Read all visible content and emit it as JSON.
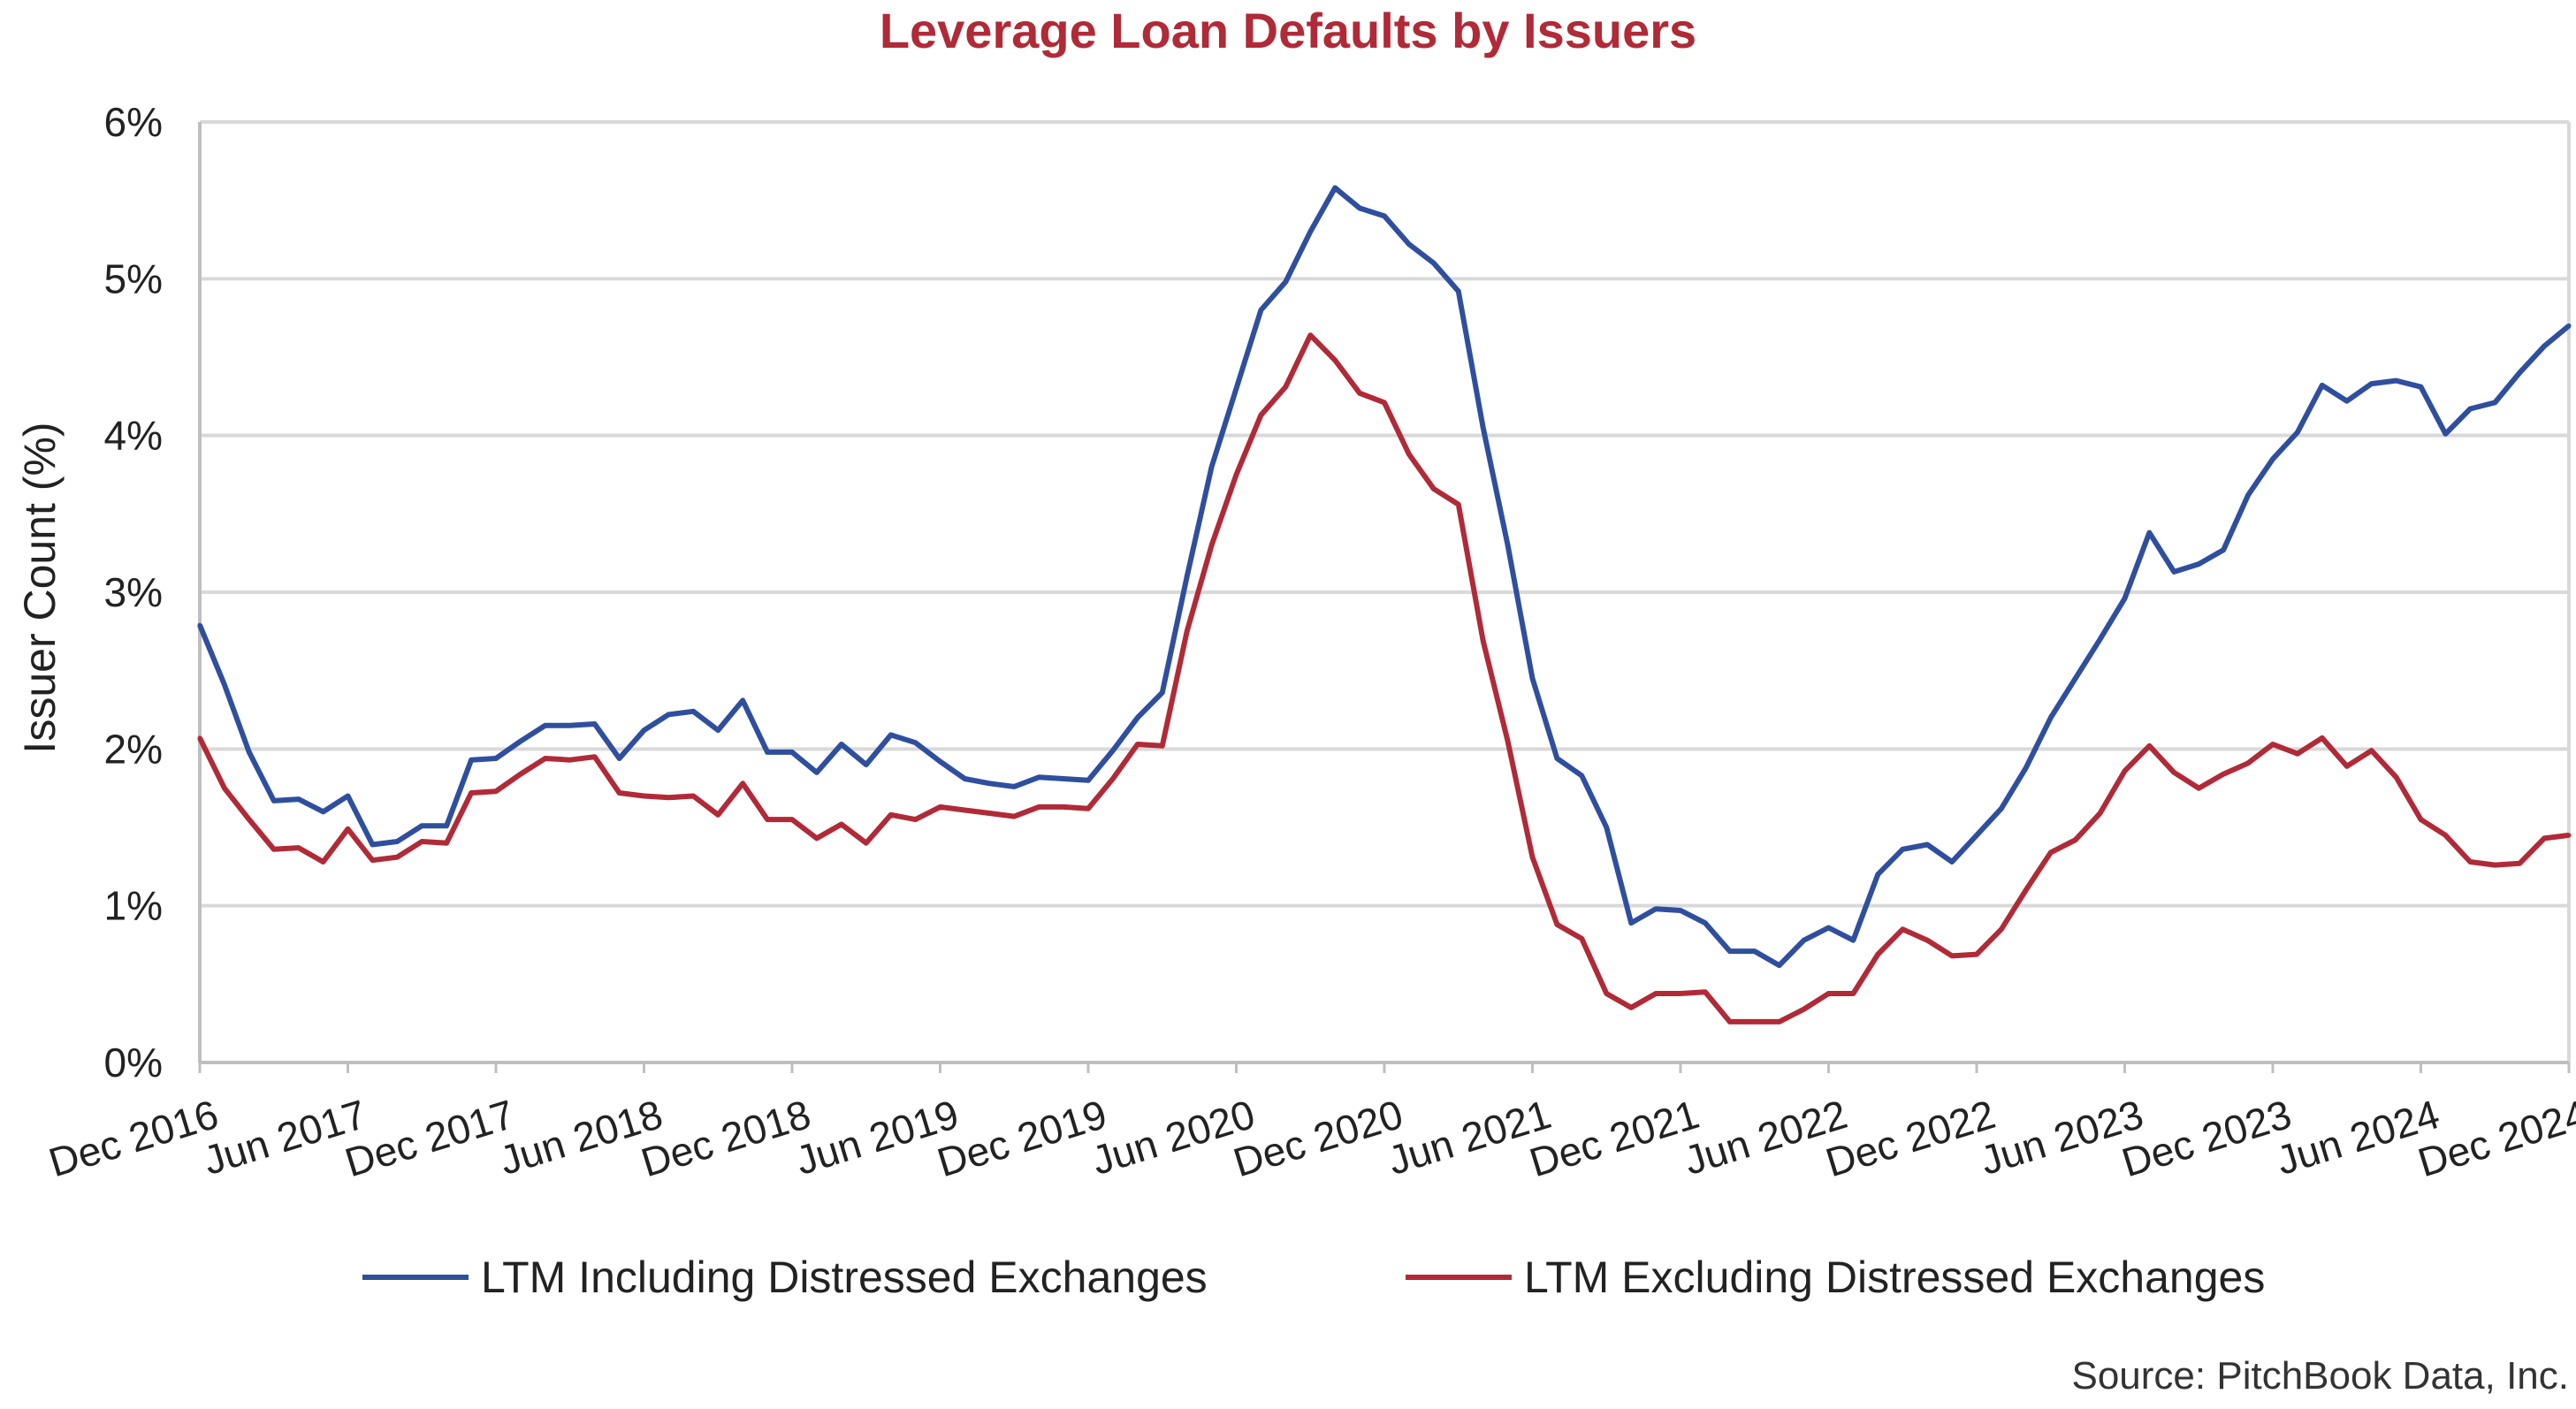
{
  "chart_data": {
    "type": "line",
    "title": "Leverage Loan Defaults by Issuers",
    "xlabel": "",
    "ylabel": "Issuer Count (%)",
    "ylim": [
      0,
      6
    ],
    "yticks": [
      "0%",
      "1%",
      "2%",
      "3%",
      "4%",
      "5%",
      "6%"
    ],
    "grid": true,
    "legend_position": "bottom",
    "xtick_labels": [
      "Dec 2016",
      "Jun 2017",
      "Dec 2017",
      "Jun 2018",
      "Dec 2018",
      "Jun 2019",
      "Dec 2019",
      "Jun 2020",
      "Dec 2020",
      "Jun 2021",
      "Dec 2021",
      "Jun 2022",
      "Dec 2022",
      "Jun 2023",
      "Dec 2023",
      "Jun 2024",
      "Dec 2024"
    ],
    "start_month": "Dec 2016",
    "series": [
      {
        "name": "LTM Including Distressed Exchanges",
        "color": "#2f4f9e",
        "values": [
          2.79,
          2.41,
          1.98,
          1.67,
          1.68,
          1.6,
          1.7,
          1.39,
          1.41,
          1.51,
          1.51,
          1.93,
          1.94,
          2.05,
          2.15,
          2.15,
          2.16,
          1.94,
          2.12,
          2.22,
          2.24,
          2.12,
          2.31,
          1.98,
          1.98,
          1.85,
          2.03,
          1.9,
          2.09,
          2.04,
          1.92,
          1.81,
          1.78,
          1.76,
          1.82,
          1.81,
          1.8,
          1.99,
          2.2,
          2.36,
          3.1,
          3.8,
          4.3,
          4.8,
          4.98,
          5.3,
          5.58,
          5.45,
          5.4,
          5.22,
          5.1,
          4.92,
          4.05,
          3.3,
          2.45,
          1.94,
          1.83,
          1.5,
          0.89,
          0.98,
          0.97,
          0.89,
          0.71,
          0.71,
          0.62,
          0.78,
          0.86,
          0.78,
          1.2,
          1.36,
          1.39,
          1.28,
          1.45,
          1.62,
          1.88,
          2.2,
          2.45,
          2.7,
          2.96,
          3.38,
          3.13,
          3.18,
          3.27,
          3.62,
          3.85,
          4.02,
          4.32,
          4.22,
          4.33,
          4.35,
          4.31,
          4.01,
          4.17,
          4.21,
          4.4,
          4.57,
          4.7
        ]
      },
      {
        "name": "LTM Excluding Distressed Exchanges",
        "color": "#b02a37",
        "values": [
          2.07,
          1.75,
          1.55,
          1.36,
          1.37,
          1.28,
          1.49,
          1.29,
          1.31,
          1.41,
          1.4,
          1.72,
          1.73,
          1.84,
          1.94,
          1.93,
          1.95,
          1.72,
          1.7,
          1.69,
          1.7,
          1.58,
          1.78,
          1.55,
          1.55,
          1.43,
          1.52,
          1.4,
          1.58,
          1.55,
          1.63,
          1.61,
          1.59,
          1.57,
          1.63,
          1.63,
          1.62,
          1.81,
          2.03,
          2.02,
          2.75,
          3.3,
          3.75,
          4.13,
          4.31,
          4.64,
          4.48,
          4.27,
          4.21,
          3.88,
          3.66,
          3.56,
          2.69,
          2.05,
          1.31,
          0.88,
          0.79,
          0.44,
          0.35,
          0.44,
          0.44,
          0.45,
          0.26,
          0.26,
          0.26,
          0.34,
          0.44,
          0.44,
          0.69,
          0.85,
          0.78,
          0.68,
          0.69,
          0.85,
          1.1,
          1.34,
          1.42,
          1.59,
          1.86,
          2.02,
          1.85,
          1.75,
          1.84,
          1.91,
          2.03,
          1.97,
          2.07,
          1.89,
          1.99,
          1.82,
          1.55,
          1.45,
          1.28,
          1.26,
          1.27,
          1.43,
          1.45
        ]
      }
    ]
  },
  "source": "Source: PitchBook Data, Inc."
}
